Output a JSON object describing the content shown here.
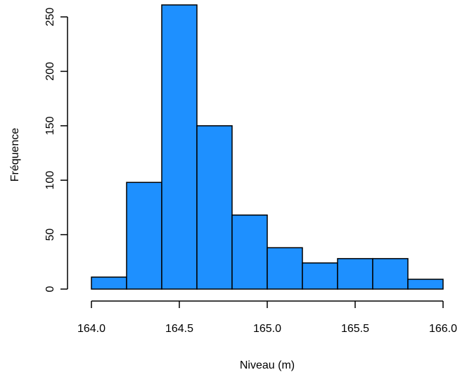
{
  "chart_data": {
    "type": "bar",
    "subtype": "histogram",
    "xlabel": "Niveau (m)",
    "ylabel": "Fréquence",
    "bins": [
      {
        "start": 164.0,
        "end": 164.2,
        "count": 11
      },
      {
        "start": 164.2,
        "end": 164.4,
        "count": 98
      },
      {
        "start": 164.4,
        "end": 164.6,
        "count": 261
      },
      {
        "start": 164.6,
        "end": 164.8,
        "count": 150
      },
      {
        "start": 164.8,
        "end": 165.0,
        "count": 68
      },
      {
        "start": 165.0,
        "end": 165.2,
        "count": 38
      },
      {
        "start": 165.2,
        "end": 165.4,
        "count": 24
      },
      {
        "start": 165.4,
        "end": 165.6,
        "count": 28
      },
      {
        "start": 165.6,
        "end": 165.8,
        "count": 28
      },
      {
        "start": 165.8,
        "end": 166.0,
        "count": 9
      }
    ],
    "x_ticks": [
      "164.0",
      "164.5",
      "165.0",
      "165.5",
      "166.0"
    ],
    "y_ticks": [
      "0",
      "50",
      "100",
      "150",
      "200",
      "250"
    ],
    "xlim": [
      164.0,
      166.0
    ],
    "ylim": [
      0,
      261
    ],
    "bar_color": "#1E90FF",
    "bar_border_color": "#000000",
    "grid": false,
    "legend": "none"
  }
}
